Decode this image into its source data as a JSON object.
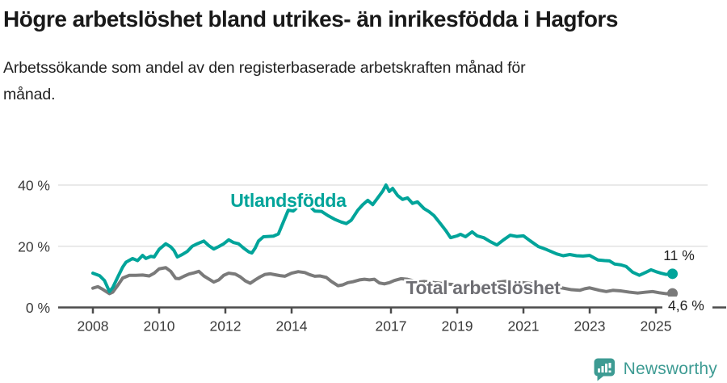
{
  "header": {
    "title": "Högre arbetslöshet bland utrikes- än inrikesfödda i Hagfors",
    "subtitle": "Arbetssökande som andel av den registerbaserade arbetskraften månad för månad."
  },
  "chart_data": {
    "type": "line",
    "unit": "%",
    "x_axis": {
      "ticks": [
        2008,
        2010,
        2012,
        2014,
        2017,
        2019,
        2021,
        2023,
        2025
      ]
    },
    "y_axis": {
      "ticks": [
        {
          "value": 0,
          "label": "0 %"
        },
        {
          "value": 20,
          "label": "20 %"
        },
        {
          "value": 40,
          "label": "40 %"
        }
      ],
      "range": [
        0,
        44
      ]
    },
    "series": [
      {
        "id": "total",
        "name": "Total arbetslöshet",
        "color": "#7a7a7a",
        "label_color": "#6e6e73",
        "end_label": "4,6 %",
        "label_anchor": {
          "year": 2019.78,
          "value": 6.5
        },
        "points": [
          [
            2008.0,
            6.3
          ],
          [
            2008.15,
            6.8
          ],
          [
            2008.3,
            5.9
          ],
          [
            2008.5,
            4.5
          ],
          [
            2008.6,
            5.0
          ],
          [
            2008.75,
            7.2
          ],
          [
            2008.9,
            9.6
          ],
          [
            2009.1,
            10.5
          ],
          [
            2009.3,
            10.5
          ],
          [
            2009.5,
            10.6
          ],
          [
            2009.7,
            10.3
          ],
          [
            2009.85,
            11.2
          ],
          [
            2010.0,
            12.6
          ],
          [
            2010.2,
            13.0
          ],
          [
            2010.35,
            11.8
          ],
          [
            2010.5,
            9.5
          ],
          [
            2010.6,
            9.4
          ],
          [
            2010.75,
            10.2
          ],
          [
            2010.9,
            10.9
          ],
          [
            2011.05,
            11.3
          ],
          [
            2011.2,
            11.8
          ],
          [
            2011.35,
            10.3
          ],
          [
            2011.5,
            9.3
          ],
          [
            2011.65,
            8.3
          ],
          [
            2011.8,
            9.0
          ],
          [
            2011.95,
            10.5
          ],
          [
            2012.1,
            11.2
          ],
          [
            2012.3,
            10.9
          ],
          [
            2012.45,
            10.0
          ],
          [
            2012.6,
            8.7
          ],
          [
            2012.75,
            7.9
          ],
          [
            2012.9,
            9.0
          ],
          [
            2013.05,
            10.0
          ],
          [
            2013.2,
            10.8
          ],
          [
            2013.35,
            11.0
          ],
          [
            2013.5,
            10.7
          ],
          [
            2013.65,
            10.4
          ],
          [
            2013.8,
            10.2
          ],
          [
            2014.0,
            11.2
          ],
          [
            2014.2,
            11.7
          ],
          [
            2014.4,
            11.4
          ],
          [
            2014.55,
            10.7
          ],
          [
            2014.7,
            10.2
          ],
          [
            2014.85,
            10.3
          ],
          [
            2015.05,
            9.8
          ],
          [
            2015.2,
            8.5
          ],
          [
            2015.4,
            7.1
          ],
          [
            2015.55,
            7.4
          ],
          [
            2015.7,
            8.1
          ],
          [
            2015.85,
            8.4
          ],
          [
            2016.05,
            9.0
          ],
          [
            2016.2,
            9.2
          ],
          [
            2016.35,
            9.0
          ],
          [
            2016.5,
            9.2
          ],
          [
            2016.65,
            8.0
          ],
          [
            2016.8,
            7.7
          ],
          [
            2016.95,
            8.1
          ],
          [
            2017.1,
            8.8
          ],
          [
            2017.3,
            9.4
          ],
          [
            2017.5,
            9.2
          ],
          [
            2017.65,
            8.8
          ],
          [
            2017.8,
            8.3
          ],
          [
            2018.0,
            8.5
          ],
          [
            2018.25,
            8.2
          ],
          [
            2018.5,
            7.9
          ],
          [
            2018.75,
            7.6
          ],
          [
            2019.0,
            7.4
          ],
          [
            2019.25,
            7.3
          ],
          [
            2019.5,
            7.2
          ],
          [
            2019.75,
            7.3
          ],
          [
            2020.0,
            7.6
          ],
          [
            2020.25,
            8.3
          ],
          [
            2020.5,
            8.6
          ],
          [
            2020.75,
            8.4
          ],
          [
            2021.0,
            8.1
          ],
          [
            2021.25,
            7.8
          ],
          [
            2021.5,
            7.4
          ],
          [
            2021.75,
            7.0
          ],
          [
            2022.0,
            6.7
          ],
          [
            2022.2,
            6.3
          ],
          [
            2022.45,
            5.8
          ],
          [
            2022.7,
            5.6
          ],
          [
            2022.85,
            6.1
          ],
          [
            2023.0,
            6.4
          ],
          [
            2023.15,
            6.0
          ],
          [
            2023.3,
            5.6
          ],
          [
            2023.5,
            5.2
          ],
          [
            2023.7,
            5.6
          ],
          [
            2023.95,
            5.4
          ],
          [
            2024.2,
            5.0
          ],
          [
            2024.45,
            4.7
          ],
          [
            2024.7,
            5.0
          ],
          [
            2024.9,
            5.2
          ],
          [
            2025.1,
            4.8
          ],
          [
            2025.3,
            4.5
          ],
          [
            2025.5,
            4.6
          ]
        ]
      },
      {
        "id": "utlandsfodda",
        "name": "Utlandsfödda",
        "color": "#00a49a",
        "label_color": "#00a49a",
        "end_label": "11 %",
        "label_anchor": {
          "year": 2013.9,
          "value": 35
        },
        "points": [
          [
            2008.0,
            11.2
          ],
          [
            2008.2,
            10.4
          ],
          [
            2008.35,
            8.8
          ],
          [
            2008.5,
            5.2
          ],
          [
            2008.6,
            6.5
          ],
          [
            2008.75,
            9.9
          ],
          [
            2008.9,
            13.2
          ],
          [
            2009.0,
            14.8
          ],
          [
            2009.2,
            16.0
          ],
          [
            2009.35,
            15.3
          ],
          [
            2009.5,
            17.0
          ],
          [
            2009.6,
            16.0
          ],
          [
            2009.75,
            16.7
          ],
          [
            2009.85,
            16.5
          ],
          [
            2010.0,
            19.0
          ],
          [
            2010.2,
            20.8
          ],
          [
            2010.35,
            19.8
          ],
          [
            2010.45,
            18.6
          ],
          [
            2010.55,
            16.5
          ],
          [
            2010.7,
            17.3
          ],
          [
            2010.85,
            18.3
          ],
          [
            2011.0,
            20.0
          ],
          [
            2011.15,
            20.8
          ],
          [
            2011.35,
            21.7
          ],
          [
            2011.5,
            20.2
          ],
          [
            2011.65,
            19.1
          ],
          [
            2011.8,
            19.9
          ],
          [
            2011.95,
            20.8
          ],
          [
            2012.1,
            22.1
          ],
          [
            2012.25,
            21.2
          ],
          [
            2012.4,
            20.8
          ],
          [
            2012.55,
            19.4
          ],
          [
            2012.7,
            18.2
          ],
          [
            2012.8,
            17.8
          ],
          [
            2012.9,
            19.4
          ],
          [
            2013.0,
            21.7
          ],
          [
            2013.15,
            23.1
          ],
          [
            2013.3,
            23.2
          ],
          [
            2013.45,
            23.3
          ],
          [
            2013.6,
            24.0
          ],
          [
            2013.75,
            27.9
          ],
          [
            2013.9,
            31.8
          ],
          [
            2014.05,
            31.5
          ],
          [
            2014.2,
            33.0
          ],
          [
            2014.35,
            34.5
          ],
          [
            2014.5,
            33.5
          ],
          [
            2014.7,
            31.5
          ],
          [
            2014.9,
            31.4
          ],
          [
            2015.1,
            30.0
          ],
          [
            2015.3,
            28.8
          ],
          [
            2015.5,
            27.9
          ],
          [
            2015.65,
            27.4
          ],
          [
            2015.8,
            28.5
          ],
          [
            2016.0,
            31.8
          ],
          [
            2016.15,
            33.6
          ],
          [
            2016.3,
            35.0
          ],
          [
            2016.45,
            33.6
          ],
          [
            2016.6,
            35.8
          ],
          [
            2016.75,
            38.0
          ],
          [
            2016.85,
            40.0
          ],
          [
            2016.95,
            37.9
          ],
          [
            2017.05,
            38.9
          ],
          [
            2017.2,
            36.6
          ],
          [
            2017.35,
            35.3
          ],
          [
            2017.5,
            35.8
          ],
          [
            2017.65,
            34.0
          ],
          [
            2017.8,
            34.5
          ],
          [
            2018.0,
            32.3
          ],
          [
            2018.15,
            31.3
          ],
          [
            2018.3,
            30.0
          ],
          [
            2018.5,
            27.3
          ],
          [
            2018.65,
            25.2
          ],
          [
            2018.8,
            22.8
          ],
          [
            2019.0,
            23.4
          ],
          [
            2019.1,
            23.9
          ],
          [
            2019.25,
            23.1
          ],
          [
            2019.45,
            24.7
          ],
          [
            2019.6,
            23.4
          ],
          [
            2019.8,
            22.8
          ],
          [
            2020.0,
            21.5
          ],
          [
            2020.2,
            20.4
          ],
          [
            2020.4,
            22.1
          ],
          [
            2020.6,
            23.6
          ],
          [
            2020.8,
            23.2
          ],
          [
            2021.0,
            23.4
          ],
          [
            2021.2,
            21.8
          ],
          [
            2021.45,
            19.9
          ],
          [
            2021.7,
            18.9
          ],
          [
            2021.85,
            18.2
          ],
          [
            2022.0,
            17.5
          ],
          [
            2022.2,
            16.9
          ],
          [
            2022.4,
            17.3
          ],
          [
            2022.6,
            16.9
          ],
          [
            2022.8,
            16.8
          ],
          [
            2023.0,
            17.0
          ],
          [
            2023.25,
            15.5
          ],
          [
            2023.45,
            15.3
          ],
          [
            2023.6,
            15.2
          ],
          [
            2023.75,
            14.2
          ],
          [
            2023.95,
            13.9
          ],
          [
            2024.1,
            13.4
          ],
          [
            2024.3,
            11.5
          ],
          [
            2024.5,
            10.5
          ],
          [
            2024.7,
            11.5
          ],
          [
            2024.85,
            12.3
          ],
          [
            2025.0,
            11.7
          ],
          [
            2025.15,
            11.2
          ],
          [
            2025.3,
            10.8
          ],
          [
            2025.5,
            11.0
          ]
        ]
      }
    ],
    "colors": {
      "gridline": "#e2e2e2",
      "axis": "#4c4c4c",
      "tick_text": "#3a3a3a",
      "end_label_text": "#222222"
    }
  },
  "footer": {
    "brand": "Newsworthy",
    "brand_color": "#3d9b93"
  }
}
